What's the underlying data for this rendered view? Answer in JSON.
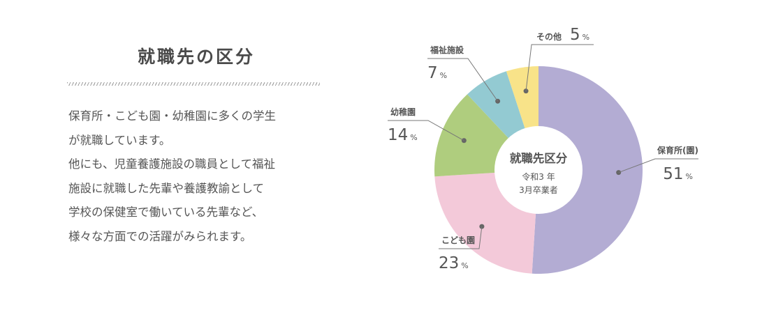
{
  "section": {
    "heading": "就職先の区分",
    "description_lines": [
      "保育所・こども園・幼稚園に多くの学生",
      "が就職しています。",
      "他にも、児童養護施設の職員として福祉",
      "施設に就職した先輩や養護教諭として",
      "学校の保健室で働いている先輩など、",
      "様々な方面での活躍がみられます。"
    ]
  },
  "chart_data": {
    "type": "pie",
    "title": "就職先区分",
    "subtitle_lines": [
      "令和3 年",
      "3月卒業者"
    ],
    "unit": "%",
    "slices": [
      {
        "label": "保育所(園)",
        "value": 51,
        "color": "#b3acd3"
      },
      {
        "label": "こども園",
        "value": 23,
        "color": "#f3c9d9"
      },
      {
        "label": "幼稚園",
        "value": 14,
        "color": "#afcd7e"
      },
      {
        "label": "福祉施設",
        "value": 7,
        "color": "#93cad2"
      },
      {
        "label": "その他",
        "value": 5,
        "color": "#f8e389"
      }
    ]
  }
}
